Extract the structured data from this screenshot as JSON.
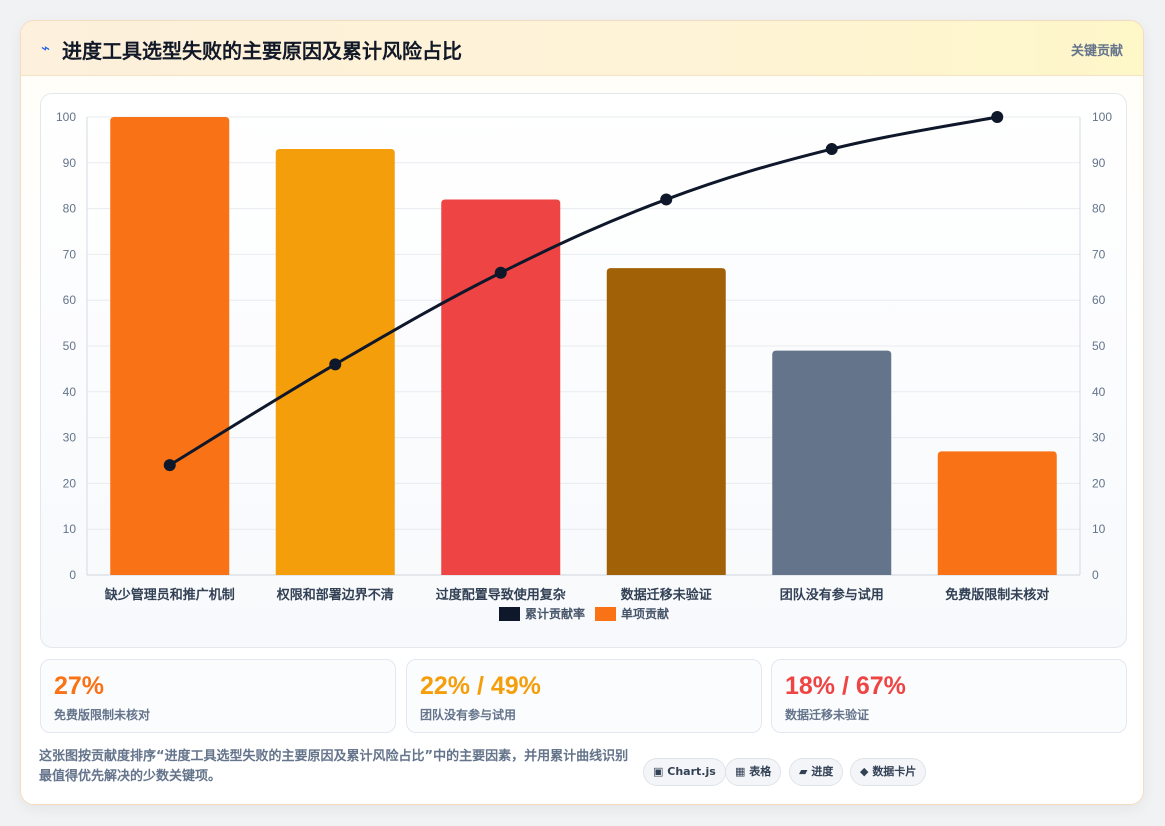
{
  "header": {
    "icon": "lightning-icon",
    "title": "进度工具选型失败的主要原因及累计风险占比",
    "badge": "关键贡献"
  },
  "chart_data": {
    "type": "bar",
    "categories": [
      "缺少管理员和推广机制",
      "权限和部署边界不清",
      "过度配置导致使用复杂",
      "数据迁移未验证",
      "团队没有参与试用",
      "免费版限制未核对"
    ],
    "series": [
      {
        "name": "单项贡献",
        "type": "bar",
        "values": [
          100,
          93,
          82,
          67,
          49,
          27
        ],
        "colors": [
          "#f97316",
          "#f59e0b",
          "#ef4444",
          "#a16207",
          "#64748b",
          "#f97316"
        ]
      },
      {
        "name": "累计贡献率",
        "type": "line",
        "values": [
          24,
          46,
          66,
          82,
          93,
          100
        ],
        "color": "#0f172a"
      }
    ],
    "ylim": [
      0,
      100
    ],
    "y_ticks": [
      0,
      10,
      20,
      30,
      40,
      50,
      60,
      70,
      80,
      90,
      100
    ],
    "y2lim": [
      0,
      100
    ],
    "y2_ticks": [
      0,
      10,
      20,
      30,
      40,
      50,
      60,
      70,
      80,
      90,
      100
    ],
    "legend": [
      {
        "label": "累计贡献率",
        "color": "#0f172a"
      },
      {
        "label": "单项贡献",
        "color": "#f97316"
      }
    ],
    "legend_position": "bottom",
    "grid": true
  },
  "stats": [
    {
      "value": "27%",
      "label": "免费版限制未核对",
      "color": "#f97316"
    },
    {
      "value": "22% / 49%",
      "label": "团队没有参与试用",
      "color": "#f59e0b"
    },
    {
      "value": "18% / 67%",
      "label": "数据迁移未验证",
      "color": "#ef4444"
    }
  ],
  "description": "这张图按贡献度排序“进度工具选型失败的主要原因及累计风险占比”中的主要因素，并用累计曲线识别最值得优先解决的少数关键项。",
  "chips": [
    {
      "icon": "▣",
      "label": "Chart.js"
    },
    {
      "icon": "▦",
      "label": "表格"
    },
    {
      "icon": "▰",
      "label": "进度"
    },
    {
      "icon": "◆",
      "label": "数据卡片"
    }
  ]
}
